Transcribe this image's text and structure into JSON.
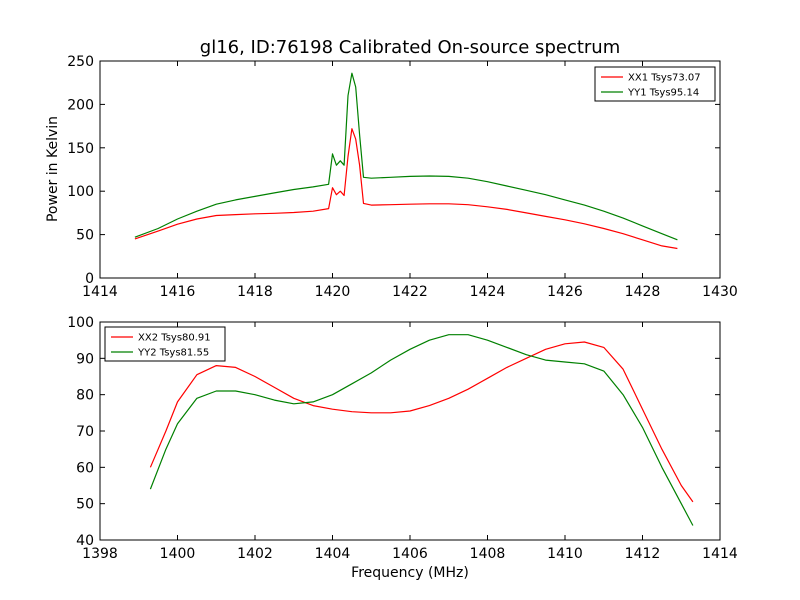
{
  "figure": {
    "title": "gl16, ID:76198 Calibrated On-source spectrum",
    "xlabel": "Frequency (MHz)"
  },
  "chart_data": [
    {
      "type": "line",
      "title": "gl16, ID:76198 Calibrated On-source spectrum",
      "xlabel": "",
      "ylabel": "Power in Kelvin",
      "xlim": [
        1414,
        1430
      ],
      "ylim": [
        0,
        250
      ],
      "xticks": [
        1414,
        1416,
        1418,
        1420,
        1422,
        1424,
        1426,
        1428,
        1430
      ],
      "yticks": [
        0,
        50,
        100,
        150,
        200,
        250
      ],
      "legend": "top-right",
      "grid": false,
      "series": [
        {
          "name": "XX1 Tsys73.07",
          "color": "#ff0000",
          "x": [
            1414.9,
            1415.5,
            1416.0,
            1416.5,
            1417.0,
            1417.5,
            1418.0,
            1418.5,
            1419.0,
            1419.5,
            1419.9,
            1420.0,
            1420.1,
            1420.2,
            1420.3,
            1420.4,
            1420.5,
            1420.6,
            1420.7,
            1420.8,
            1421.0,
            1421.5,
            1422.0,
            1422.5,
            1423.0,
            1423.5,
            1424.0,
            1424.5,
            1425.0,
            1425.5,
            1426.0,
            1426.5,
            1427.0,
            1427.5,
            1428.0,
            1428.5,
            1428.9
          ],
          "y": [
            45,
            54,
            62,
            68,
            72,
            73,
            74,
            74.5,
            75.5,
            77,
            80,
            104,
            96,
            100,
            95,
            140,
            172,
            160,
            130,
            86,
            84,
            84.5,
            85,
            85.5,
            85.5,
            84.5,
            82,
            79,
            75,
            71,
            67,
            62.5,
            57,
            51,
            44,
            37,
            34
          ]
        },
        {
          "name": "YY1 Tsys95.14",
          "color": "#008000",
          "x": [
            1414.9,
            1415.5,
            1416.0,
            1416.5,
            1417.0,
            1417.5,
            1418.0,
            1418.5,
            1419.0,
            1419.5,
            1419.9,
            1420.0,
            1420.1,
            1420.2,
            1420.3,
            1420.4,
            1420.5,
            1420.6,
            1420.7,
            1420.8,
            1421.0,
            1421.5,
            1422.0,
            1422.5,
            1423.0,
            1423.5,
            1424.0,
            1424.5,
            1425.0,
            1425.5,
            1426.0,
            1426.5,
            1427.0,
            1427.5,
            1428.0,
            1428.5,
            1428.9
          ],
          "y": [
            47,
            57,
            68,
            77,
            85,
            90,
            94,
            98,
            102,
            105,
            108,
            143,
            130,
            135,
            130,
            210,
            236,
            220,
            165,
            116,
            115,
            116,
            117,
            117.5,
            117,
            115,
            111,
            106,
            101,
            96,
            90,
            84,
            77,
            69,
            60,
            51,
            44
          ]
        }
      ]
    },
    {
      "type": "line",
      "title": "",
      "xlabel": "Frequency (MHz)",
      "ylabel": "",
      "xlim": [
        1398,
        1414
      ],
      "ylim": [
        40,
        100
      ],
      "xticks": [
        1398,
        1400,
        1402,
        1404,
        1406,
        1408,
        1410,
        1412,
        1414
      ],
      "yticks": [
        40,
        50,
        60,
        70,
        80,
        90,
        100
      ],
      "legend": "top-left",
      "grid": false,
      "series": [
        {
          "name": "XX2 Tsys80.91",
          "color": "#ff0000",
          "x": [
            1399.3,
            1399.7,
            1400.0,
            1400.5,
            1401.0,
            1401.5,
            1402.0,
            1402.5,
            1403.0,
            1403.5,
            1404.0,
            1404.5,
            1405.0,
            1405.5,
            1406.0,
            1406.5,
            1407.0,
            1407.5,
            1408.0,
            1408.5,
            1409.0,
            1409.5,
            1410.0,
            1410.5,
            1411.0,
            1411.5,
            1412.0,
            1412.5,
            1413.0,
            1413.3
          ],
          "y": [
            60,
            70,
            78,
            85.5,
            88,
            87.5,
            85,
            82,
            79,
            77,
            76,
            75.3,
            75,
            75,
            75.5,
            77,
            79,
            81.5,
            84.5,
            87.5,
            90,
            92.5,
            94,
            94.5,
            93,
            87,
            76,
            65,
            55,
            50.5
          ]
        },
        {
          "name": "YY2 Tsys81.55",
          "color": "#008000",
          "x": [
            1399.3,
            1399.7,
            1400.0,
            1400.5,
            1401.0,
            1401.5,
            1402.0,
            1402.5,
            1403.0,
            1403.5,
            1404.0,
            1404.5,
            1405.0,
            1405.5,
            1406.0,
            1406.5,
            1407.0,
            1407.5,
            1408.0,
            1408.5,
            1409.0,
            1409.5,
            1410.0,
            1410.5,
            1411.0,
            1411.5,
            1412.0,
            1412.5,
            1413.0,
            1413.3
          ],
          "y": [
            54,
            65,
            72,
            79,
            81,
            81,
            80,
            78.5,
            77.5,
            78,
            80,
            83,
            86,
            89.5,
            92.5,
            95,
            96.5,
            96.5,
            95,
            93,
            91,
            89.5,
            89,
            88.5,
            86.5,
            80,
            71,
            60,
            50,
            44
          ]
        }
      ]
    }
  ]
}
